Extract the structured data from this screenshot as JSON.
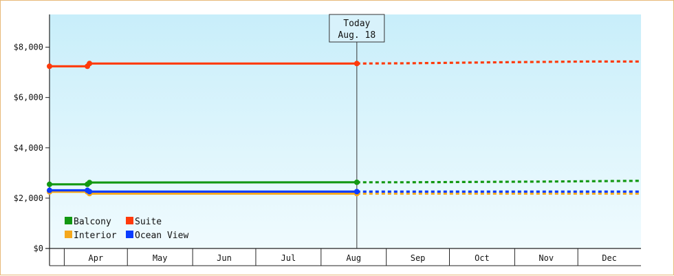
{
  "chart_data": {
    "type": "line",
    "title": "",
    "xlabel": "",
    "ylabel": "",
    "x_tick_labels": [
      "Apr",
      "May",
      "Jun",
      "Jul",
      "Aug",
      "Sep",
      "Oct",
      "Nov",
      "Dec"
    ],
    "y_tick_labels": [
      "$0",
      "$2,000",
      "$4,000",
      "$6,000",
      "$8,000"
    ],
    "y_ticks": [
      0,
      2000,
      4000,
      6000,
      8000
    ],
    "ylim": [
      0,
      9300
    ],
    "xlim": [
      "2024-03-25",
      "2024-12-31"
    ],
    "grid": false,
    "legend_position": "bottom-left",
    "today_marker": {
      "label_line1": "Today",
      "label_line2": "Aug. 18",
      "date": "2024-08-18"
    },
    "series": [
      {
        "name": "Balcony",
        "color": "#129812",
        "values": [
          {
            "date": "2024-03-25",
            "value": 2550,
            "kind": "actual"
          },
          {
            "date": "2024-04-12",
            "value": 2550,
            "kind": "actual"
          },
          {
            "date": "2024-04-13",
            "value": 2620,
            "kind": "actual"
          },
          {
            "date": "2024-08-18",
            "value": 2630,
            "kind": "actual"
          },
          {
            "date": "2024-09-12",
            "value": 2630,
            "kind": "forecast"
          },
          {
            "date": "2024-11-15",
            "value": 2660,
            "kind": "forecast"
          },
          {
            "date": "2024-12-31",
            "value": 2690,
            "kind": "forecast"
          }
        ]
      },
      {
        "name": "Interior",
        "color": "#f5a81c",
        "values": [
          {
            "date": "2024-03-25",
            "value": 2250,
            "kind": "actual"
          },
          {
            "date": "2024-04-12",
            "value": 2250,
            "kind": "actual"
          },
          {
            "date": "2024-04-13",
            "value": 2180,
            "kind": "actual"
          },
          {
            "date": "2024-08-18",
            "value": 2180,
            "kind": "actual"
          },
          {
            "date": "2024-12-31",
            "value": 2180,
            "kind": "forecast"
          }
        ]
      },
      {
        "name": "Suite",
        "color": "#ff3a0a",
        "values": [
          {
            "date": "2024-03-25",
            "value": 7240,
            "kind": "actual"
          },
          {
            "date": "2024-04-12",
            "value": 7240,
            "kind": "actual"
          },
          {
            "date": "2024-04-13",
            "value": 7350,
            "kind": "actual"
          },
          {
            "date": "2024-08-18",
            "value": 7350,
            "kind": "actual"
          },
          {
            "date": "2024-09-12",
            "value": 7360,
            "kind": "forecast"
          },
          {
            "date": "2024-10-25",
            "value": 7400,
            "kind": "forecast"
          },
          {
            "date": "2024-12-05",
            "value": 7430,
            "kind": "forecast"
          },
          {
            "date": "2024-12-31",
            "value": 7430,
            "kind": "forecast"
          }
        ]
      },
      {
        "name": "Ocean View",
        "color": "#0a3cff",
        "values": [
          {
            "date": "2024-03-25",
            "value": 2310,
            "kind": "actual"
          },
          {
            "date": "2024-04-12",
            "value": 2310,
            "kind": "actual"
          },
          {
            "date": "2024-04-13",
            "value": 2260,
            "kind": "actual"
          },
          {
            "date": "2024-08-18",
            "value": 2260,
            "kind": "actual"
          },
          {
            "date": "2024-12-31",
            "value": 2260,
            "kind": "forecast"
          }
        ]
      }
    ],
    "colors": {
      "plot_top": "#c8eefa",
      "plot_bottom": "#f0fbfe",
      "frame": "#e8b878",
      "axis": "#222222"
    }
  }
}
